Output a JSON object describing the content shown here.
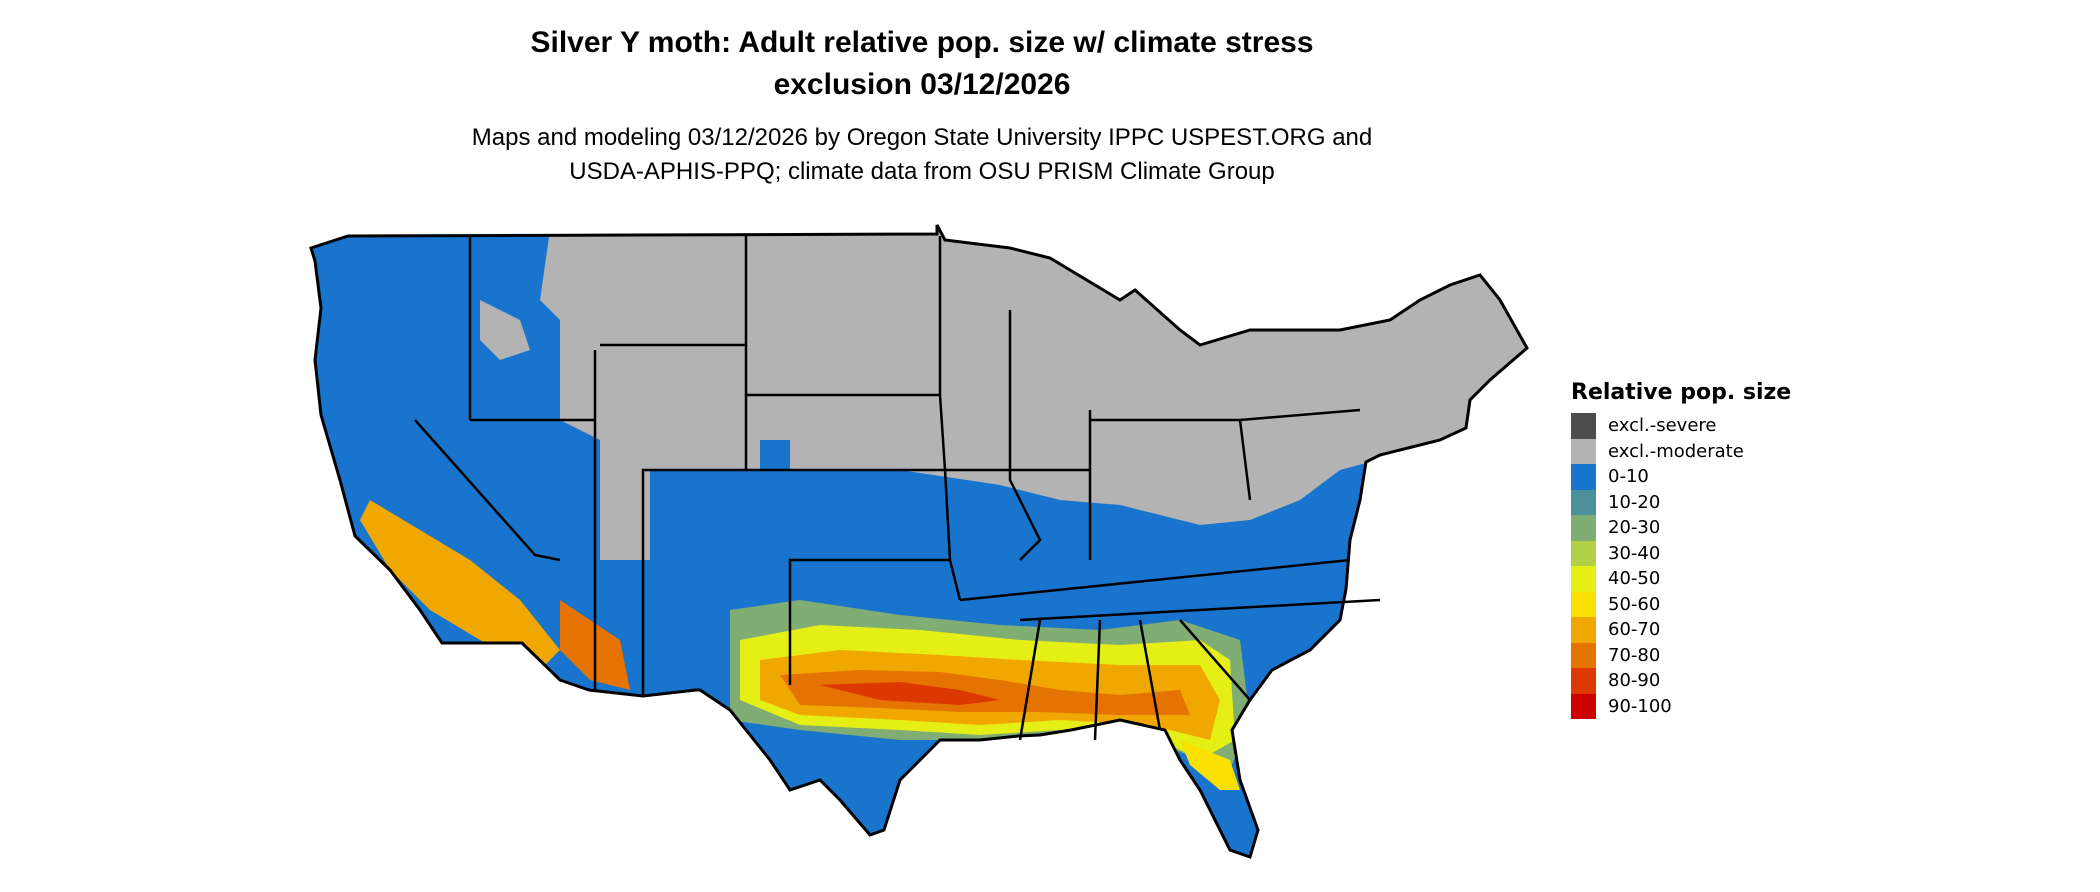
{
  "title": {
    "line1": "Silver Y moth: Adult relative pop. size w/ climate stress",
    "line2": "exclusion 03/12/2026"
  },
  "subtitle": {
    "line1": "Maps and modeling 03/12/2026 by Oregon State University IPPC USPEST.ORG and",
    "line2": "USDA-APHIS-PPQ; climate data from OSU PRISM Climate Group"
  },
  "legend": {
    "title": "Relative pop. size",
    "items": [
      {
        "label": "excl.-severe",
        "color": "#4d4d4d"
      },
      {
        "label": "excl.-moderate",
        "color": "#b3b3b3"
      },
      {
        "label": "0-10",
        "color": "#1874cd"
      },
      {
        "label": "10-20",
        "color": "#4a919b"
      },
      {
        "label": "20-30",
        "color": "#7fad74"
      },
      {
        "label": "30-40",
        "color": "#b2cf48"
      },
      {
        "label": "40-50",
        "color": "#e5ef16"
      },
      {
        "label": "50-60",
        "color": "#f9e000"
      },
      {
        "label": "60-70",
        "color": "#f0a800"
      },
      {
        "label": "70-80",
        "color": "#e57300"
      },
      {
        "label": "80-90",
        "color": "#dc3800"
      },
      {
        "label": "90-100",
        "color": "#cc0000"
      }
    ]
  }
}
